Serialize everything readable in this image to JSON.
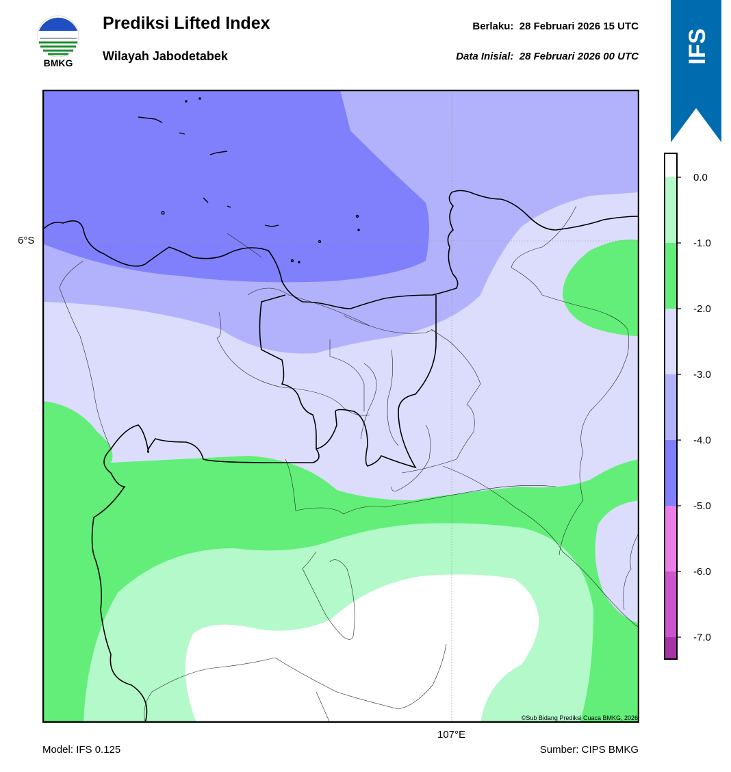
{
  "header": {
    "logo_text": "BMKG",
    "title": "Prediksi Lifted Index",
    "region": "Wilayah Jabodetabek",
    "valid_label": "Berlaku:",
    "valid_time": "28 Februari 2026 15 UTC",
    "init_label": "Data Inisial:",
    "init_time": "28 Februari 2026 00 UTC"
  },
  "ribbon": {
    "text": "IFS",
    "color": "#006cb0"
  },
  "map": {
    "lat_label": "6°S",
    "lon_label": "107°E",
    "copyright": "©Sub Bidang Prediksi Cuaca BMKG, 2026"
  },
  "footer": {
    "model": "Model: IFS 0.125",
    "source": "Sumber: CIPS BMKG"
  },
  "colorbar": {
    "ticks": [
      "0.0",
      "-1.0",
      "-2.0",
      "-3.0",
      "-4.0",
      "-5.0",
      "-6.0",
      "-7.0"
    ],
    "colors": [
      "#ffffff",
      "#b3f9ca",
      "#62ee78",
      "#dcdcfd",
      "#b2b2fc",
      "#8080fc",
      "#e97fe6",
      "#cc55cc",
      "#a634a6",
      "#7f1a80"
    ]
  }
}
